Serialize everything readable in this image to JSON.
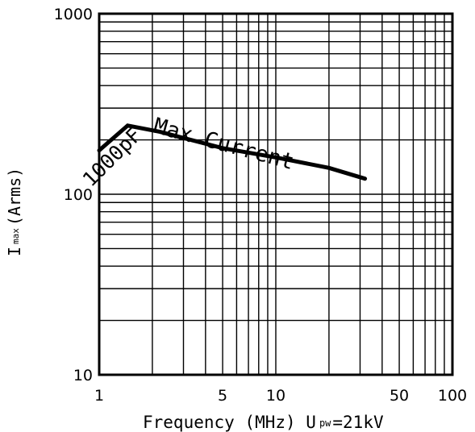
{
  "chart_data": {
    "type": "line",
    "x_scale": "log",
    "y_scale": "log",
    "xlim": [
      1,
      100
    ],
    "ylim": [
      10,
      1000
    ],
    "grid": true,
    "x_ticks": [
      {
        "value": 1,
        "label": "1"
      },
      {
        "value": 5,
        "label": "5"
      },
      {
        "value": 10,
        "label": "10"
      },
      {
        "value": 50,
        "label": "50"
      },
      {
        "value": 100,
        "label": "100"
      }
    ],
    "y_ticks": [
      {
        "value": 10,
        "label": "10"
      },
      {
        "value": 100,
        "label": "100"
      },
      {
        "value": 1000,
        "label": "1000"
      }
    ],
    "xlabel": {
      "main": "Frequency (MHz) U",
      "sub": "pw",
      "tail": "=21kV"
    },
    "ylabel": {
      "main": "I",
      "sub": "max",
      "tail": "(Arms)"
    },
    "series": [
      {
        "name": "1000pF",
        "color": "#000000",
        "x": [
          1,
          1.45,
          2.2,
          3,
          5,
          10,
          20,
          32
        ],
        "y": [
          175,
          240,
          222,
          205,
          180,
          160,
          140,
          122
        ]
      }
    ],
    "annotations": [
      {
        "text": "1000pF"
      },
      {
        "text": "Max Current"
      }
    ]
  }
}
